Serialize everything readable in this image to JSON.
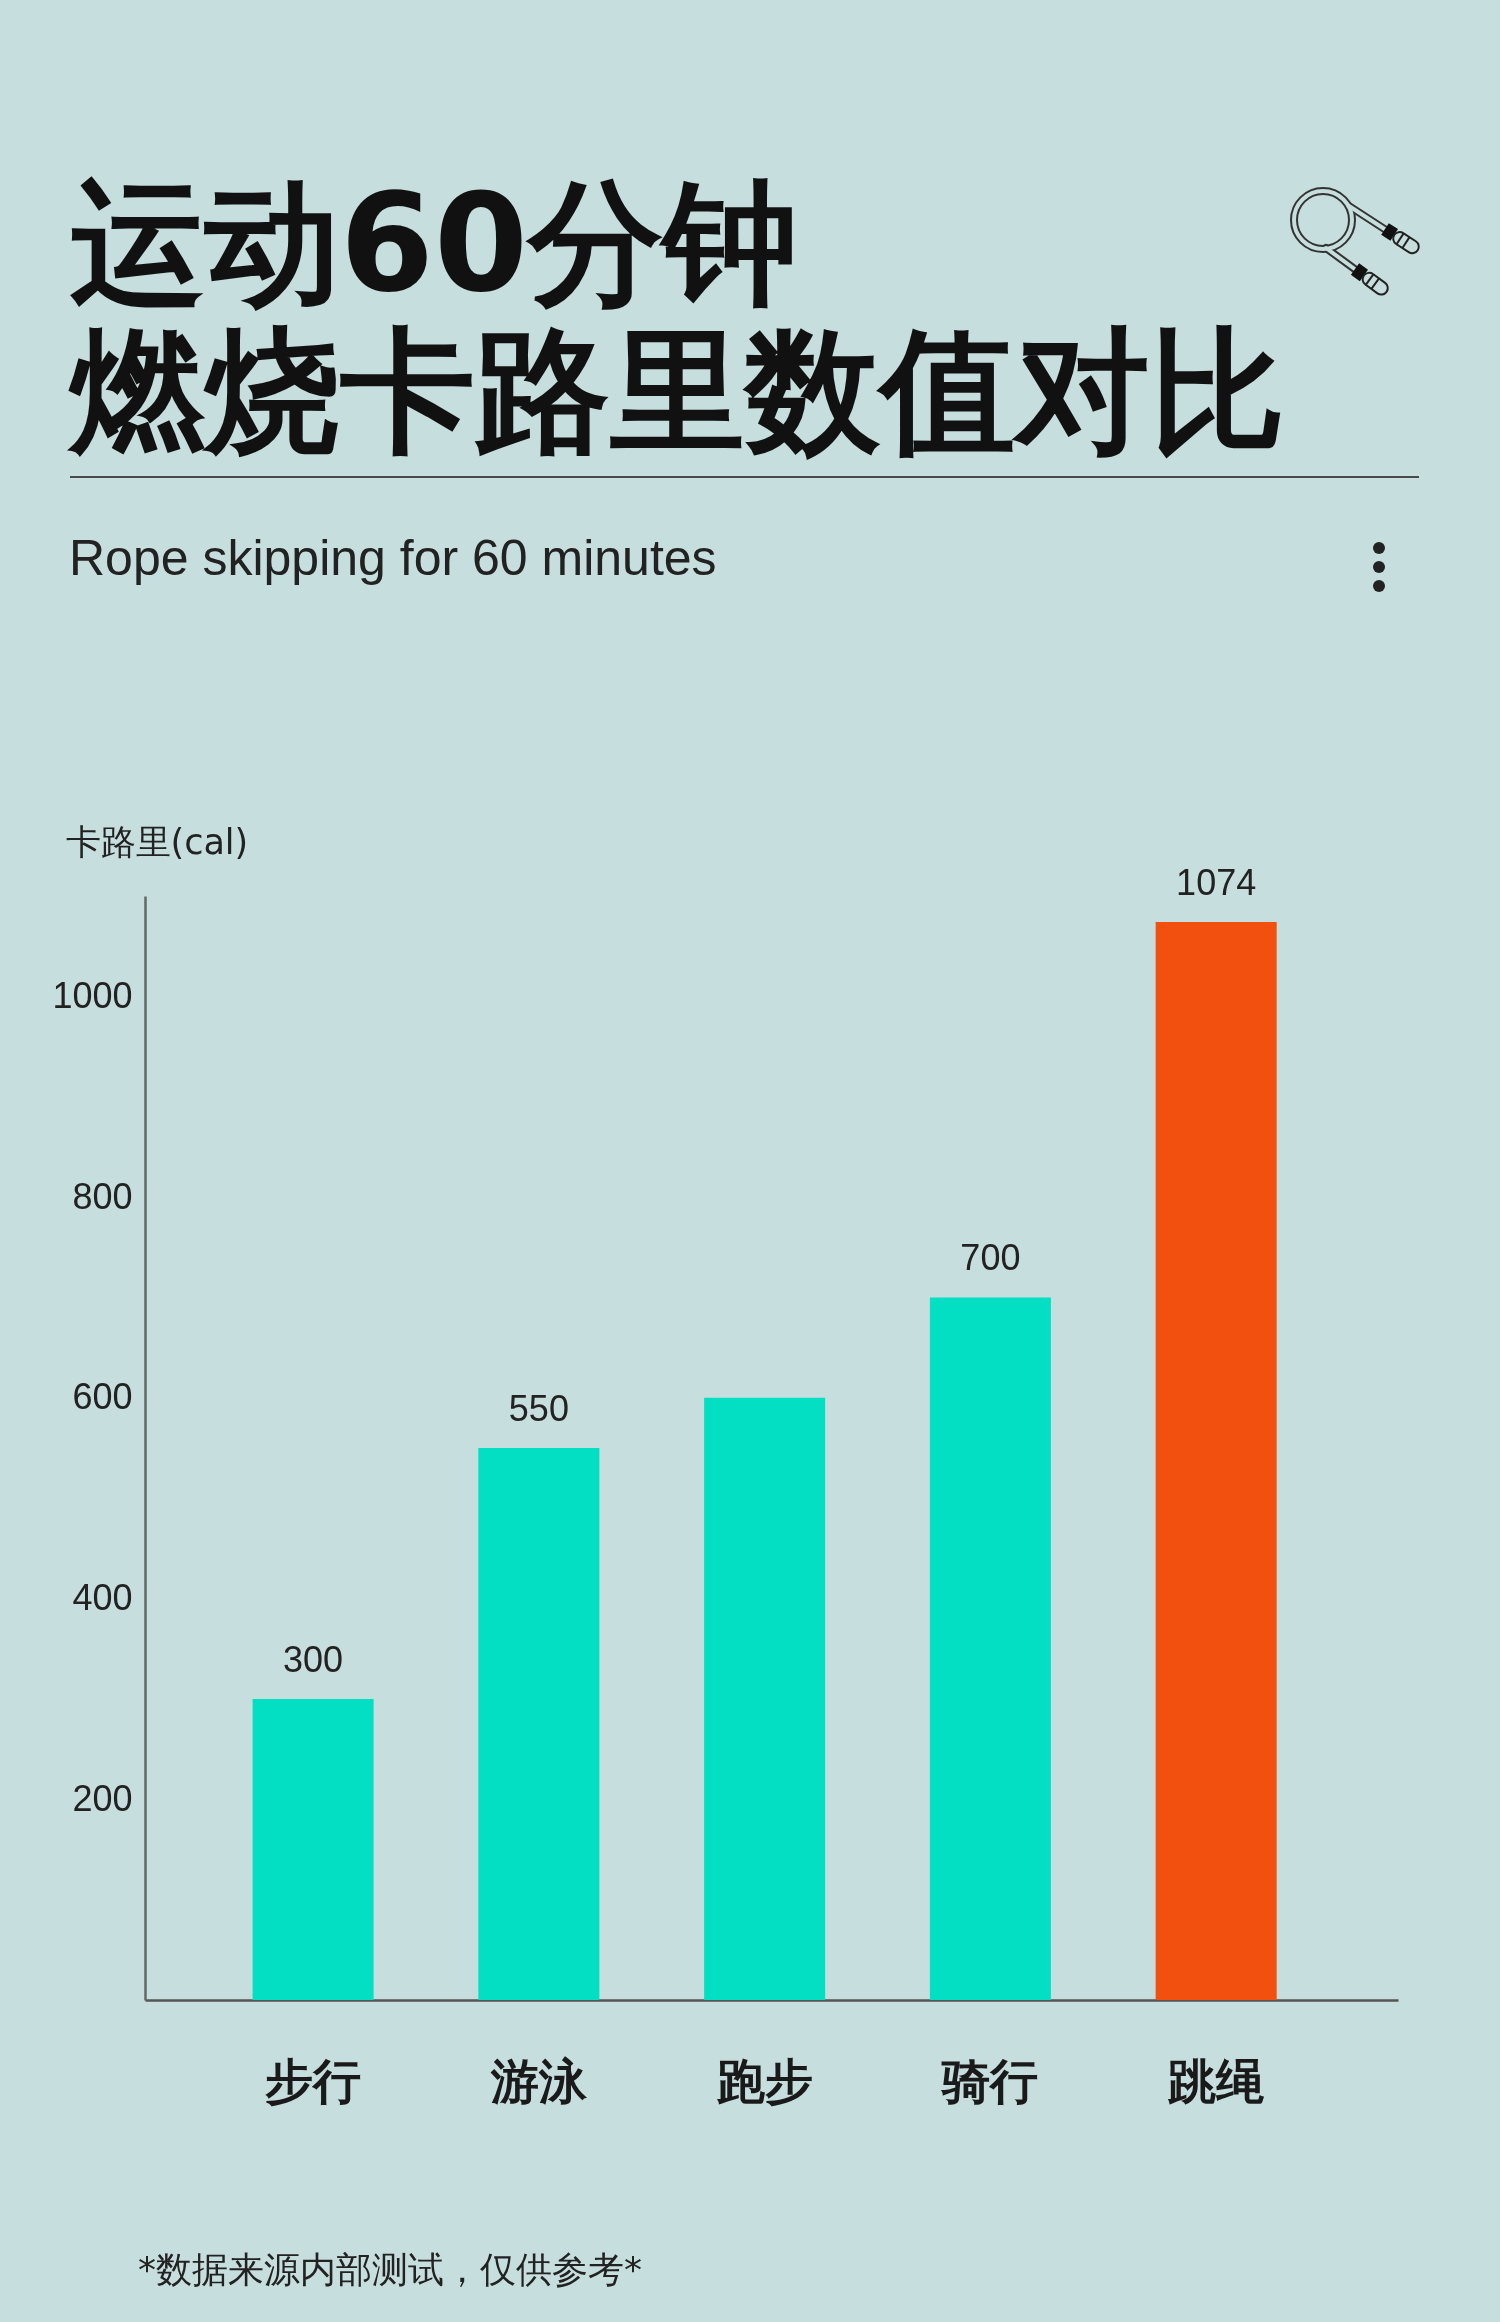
{
  "chart_data": {
    "type": "bar",
    "title": "运动60分钟燃烧卡路里数值对比",
    "subtitle": "Rope skipping for 60 minutes",
    "ylabel": "卡路里(cal)",
    "categories": [
      "步行",
      "游泳",
      "跑步",
      "骑行",
      "跳绳"
    ],
    "values": [
      300,
      550,
      600,
      700,
      1074
    ],
    "colors": [
      "#03dfc3",
      "#03dfc3",
      "#03dfc3",
      "#03dfc3",
      "#f2500f"
    ],
    "value_labels": [
      "300",
      "550",
      null,
      "700",
      "1074"
    ],
    "ylim": [
      0,
      1100
    ],
    "yticks": [
      200,
      400,
      600,
      800,
      1000
    ],
    "annotations": [
      "*数据来源内部测试，仅供参考*"
    ]
  }
}
